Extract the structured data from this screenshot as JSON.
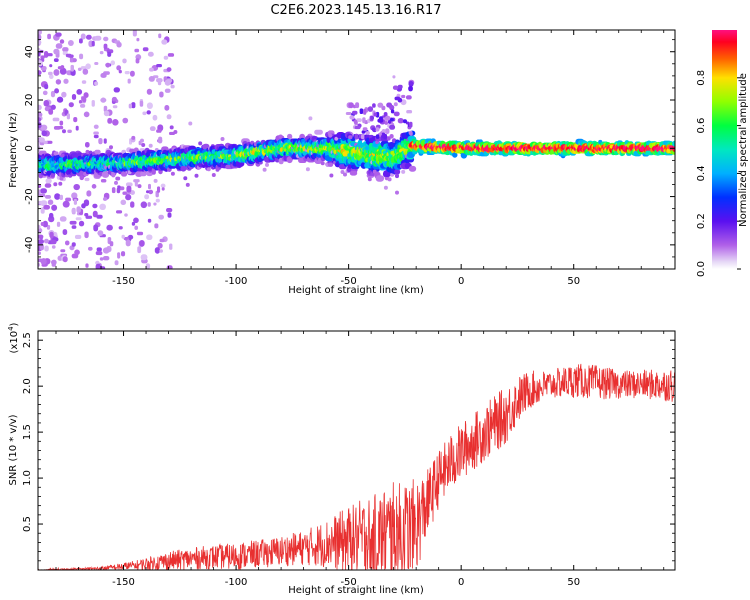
{
  "title": "C2E6.2023.145.13.16.R17",
  "chart_data": [
    {
      "type": "heatmap",
      "xlabel": "Height of straight line (km)",
      "ylabel": "Frequency (Hz)",
      "xlim": [
        -188,
        95
      ],
      "ylim": [
        -50,
        49
      ],
      "xticks": [
        -150,
        -100,
        -50,
        0,
        50
      ],
      "yticks": [
        40,
        20,
        0,
        -20,
        -40
      ],
      "colorbar": {
        "label": "Normalized spectral amplitude",
        "range": [
          0.0,
          1.0
        ],
        "ticks": [
          0.0,
          0.2,
          0.4,
          0.6,
          0.8
        ],
        "colormap": "rainbow (violet-blue-cyan-green-yellow-red-magenta)"
      },
      "band_center_hz": [
        {
          "x": -185,
          "y": -7
        },
        {
          "x": -150,
          "y": -6
        },
        {
          "x": -120,
          "y": -4
        },
        {
          "x": -100,
          "y": -3
        },
        {
          "x": -80,
          "y": 0
        },
        {
          "x": -60,
          "y": 0
        },
        {
          "x": -45,
          "y": -2
        },
        {
          "x": -30,
          "y": -4
        },
        {
          "x": -24,
          "y": 0
        },
        {
          "x": -22,
          "y": 1
        },
        {
          "x": 0,
          "y": 0
        },
        {
          "x": 30,
          "y": 0
        },
        {
          "x": 60,
          "y": 0
        },
        {
          "x": 95,
          "y": 0
        }
      ]
    },
    {
      "type": "line",
      "xlabel": "Height of straight line (km)",
      "ylabel": "SNR (10 * v/v)",
      "yscale_label": "(x10",
      "yscale_exp": "4",
      "scale_factor": 10000,
      "xlim": [
        -188,
        95
      ],
      "ylim": [
        0,
        2.6
      ],
      "xticks": [
        -150,
        -100,
        -50,
        0,
        50
      ],
      "yticks": [
        0.5,
        1.0,
        1.5,
        2.0,
        2.5
      ],
      "ytick_labels": [
        "0.5",
        "1.0",
        "1.5",
        "2.0",
        "2.5"
      ],
      "color": "#e83030",
      "series": [
        {
          "x": [
            -188,
            -160,
            -145,
            -130,
            -115,
            -100,
            -85,
            -70,
            -60,
            -50,
            -40,
            -30,
            -25,
            -20,
            -15,
            -10,
            -5,
            0,
            10,
            20,
            25,
            30,
            40,
            50,
            60,
            70,
            80,
            95
          ],
          "y": [
            0.0,
            0.02,
            0.06,
            0.12,
            0.16,
            0.18,
            0.22,
            0.28,
            0.34,
            0.4,
            0.45,
            0.5,
            0.5,
            0.58,
            0.8,
            1.05,
            1.22,
            1.35,
            1.55,
            1.75,
            1.9,
            2.0,
            2.05,
            2.1,
            2.08,
            2.05,
            2.05,
            2.05
          ],
          "noise": [
            0.0,
            0.02,
            0.05,
            0.1,
            0.12,
            0.14,
            0.15,
            0.18,
            0.25,
            0.35,
            0.45,
            0.55,
            0.55,
            0.5,
            0.35,
            0.3,
            0.3,
            0.3,
            0.3,
            0.3,
            0.25,
            0.2,
            0.15,
            0.18,
            0.18,
            0.15,
            0.15,
            0.18
          ]
        }
      ]
    }
  ]
}
